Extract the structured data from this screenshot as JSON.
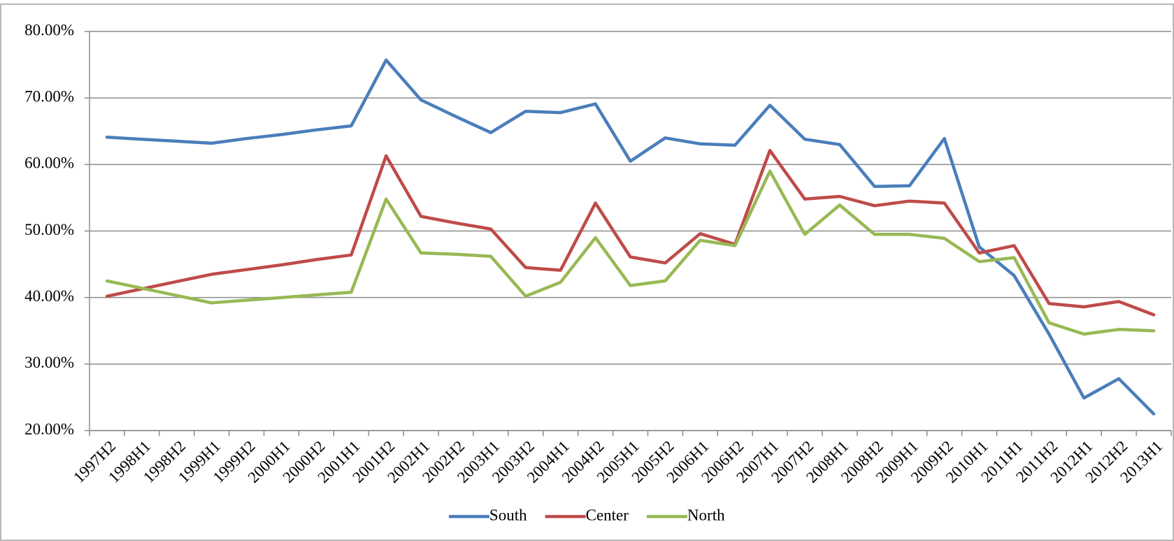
{
  "chart_data": {
    "type": "line",
    "categories": [
      "1997H2",
      "1998H1",
      "1998H2",
      "1999H1",
      "1999H2",
      "2000H1",
      "2000H2",
      "2001H1",
      "2001H2",
      "2002H1",
      "2002H2",
      "2003H1",
      "2003H2",
      "2004H1",
      "2004H2",
      "2005H1",
      "2005H2",
      "2006H1",
      "2006H2",
      "2007H1",
      "2007H2",
      "2008H1",
      "2008H2",
      "2009H1",
      "2009H2",
      "2010H1",
      "2011H1",
      "2011H2",
      "2012H1",
      "2012H2",
      "2013H1"
    ],
    "series": [
      {
        "name": "South",
        "color": "#4a7ebb",
        "values": [
          64.1,
          63.8,
          63.5,
          63.2,
          63.9,
          64.5,
          65.2,
          65.8,
          75.7,
          69.7,
          67.2,
          64.8,
          68.0,
          67.8,
          69.1,
          60.5,
          64.0,
          63.1,
          62.9,
          68.9,
          63.8,
          63.0,
          56.7,
          56.8,
          63.9,
          47.6,
          43.3,
          34.5,
          24.9,
          27.8,
          22.5
        ]
      },
      {
        "name": "Center",
        "color": "#be4b48",
        "values": [
          40.2,
          41.3,
          42.4,
          43.5,
          44.2,
          44.9,
          45.7,
          46.4,
          61.3,
          52.2,
          51.2,
          50.3,
          44.5,
          44.1,
          54.2,
          46.1,
          45.2,
          49.6,
          48.0,
          62.1,
          54.8,
          55.2,
          53.8,
          54.5,
          54.2,
          46.7,
          47.8,
          39.1,
          38.6,
          39.4,
          37.4
        ]
      },
      {
        "name": "North",
        "color": "#98b954",
        "values": [
          42.5,
          41.4,
          40.3,
          39.2,
          39.6,
          40.0,
          40.4,
          40.8,
          54.8,
          46.7,
          46.5,
          46.2,
          40.2,
          42.3,
          49.0,
          41.8,
          42.5,
          48.6,
          47.8,
          59.0,
          49.5,
          53.9,
          49.5,
          49.5,
          48.9,
          45.4,
          46.0,
          36.2,
          34.5,
          35.2,
          35.0
        ]
      }
    ],
    "ylim": [
      20,
      80
    ],
    "yticks": [
      {
        "value": 20,
        "label": "20.00%"
      },
      {
        "value": 30,
        "label": "30.00%"
      },
      {
        "value": 40,
        "label": "40.00%"
      },
      {
        "value": 50,
        "label": "50.00%"
      },
      {
        "value": 60,
        "label": "60.00%"
      },
      {
        "value": 70,
        "label": "70.00%"
      },
      {
        "value": 80,
        "label": "80.00%"
      }
    ],
    "grid": true,
    "legend": "bottom"
  }
}
